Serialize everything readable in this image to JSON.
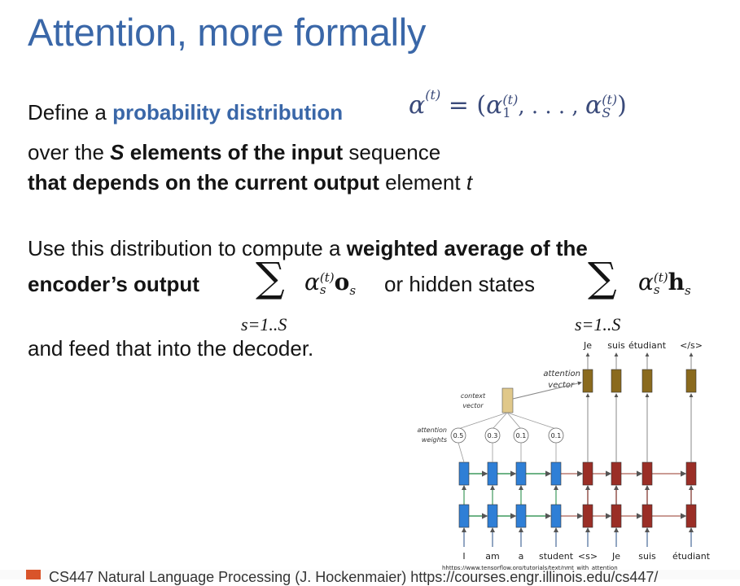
{
  "slide": {
    "title": "Attention, more formally",
    "line1": {
      "pre": "Define a ",
      "highlight": "probability distribution",
      "formula_lhs": "α",
      "formula_lhs_sup": "(t)",
      "formula_eq": "= (",
      "formula_a1": "α",
      "formula_a1_sup": "(t)",
      "formula_a1_sub": "1",
      "formula_mid": ", . . . , ",
      "formula_aS": "α",
      "formula_aS_sup": "(t)",
      "formula_aS_sub": "S",
      "formula_close": ")"
    },
    "line2": {
      "pre": "over the ",
      "S": "S",
      "bold": " elements of the input",
      "post": " sequence"
    },
    "line3": {
      "bold": "that depends on the current output",
      "post": " element ",
      "t": "t"
    },
    "line4": {
      "pre": "Use this distribution to compute a ",
      "bold": "weighted average of the"
    },
    "line5": {
      "bold": "encoder’s output",
      "sum1_sym": "∑",
      "sum1_range": "s=1..S",
      "sum1_alpha": "α",
      "sum1_sup": "(t)",
      "sum1_sub": "s",
      "sum1_var": "o",
      "sum1_var_sub": "s",
      "mid": "or hidden states",
      "sum2_sym": "∑",
      "sum2_range": "s=1..S",
      "sum2_alpha": "α",
      "sum2_sup": "(t)",
      "sum2_sub": "s",
      "sum2_var": "h",
      "sum2_var_sub": "s"
    },
    "line6": "and feed that into the decoder."
  },
  "diagram": {
    "output_words": [
      "Je",
      "suis",
      "étudiant",
      "</s>"
    ],
    "attention_vector_label": [
      "attention",
      "vector"
    ],
    "context_vector_label": [
      "context",
      "vector"
    ],
    "attention_weights_label": [
      "attention",
      "weights"
    ],
    "weights": [
      "0.5",
      "0.3",
      "0.1",
      "0.1"
    ],
    "input_words": [
      "I",
      "am",
      "a",
      "student",
      "<s>",
      "Je",
      "suis",
      "étudiant"
    ],
    "source_url": "hhttps://www.tensorflow.org/tutorials/text/nmt_with_attention"
  },
  "footer": {
    "text": "CS447 Natural Language Processing (J. Hockenmaier)  https://courses.engr.illinois.edu/cs447/"
  },
  "colors": {
    "title": "#3a67a8",
    "encoder": "#2f7fd6",
    "decoder": "#9a2e26",
    "attention": "#8a6a1e"
  }
}
